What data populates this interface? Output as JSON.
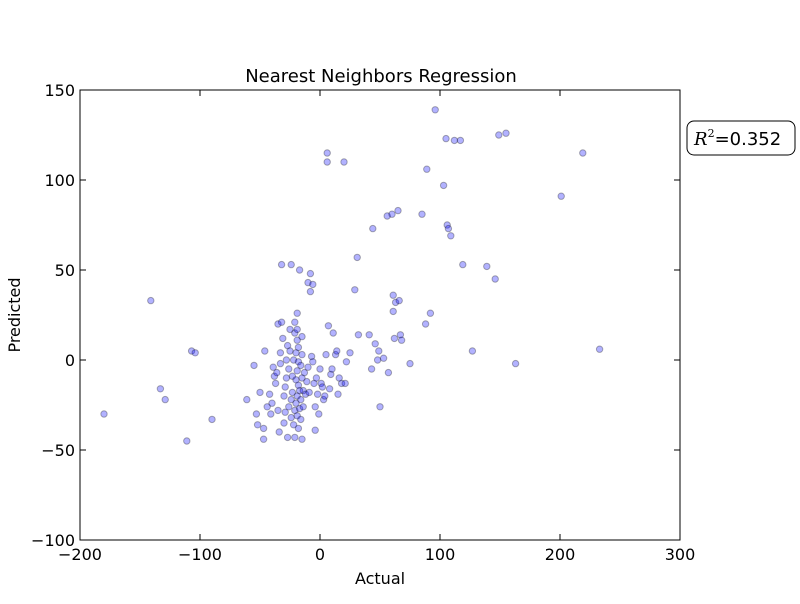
{
  "chart_data": {
    "type": "scatter",
    "title": "Nearest Neighbors Regression",
    "xlabel": "Actual",
    "ylabel": "Predicted",
    "xlim": [
      -200,
      300
    ],
    "ylim": [
      -100,
      150
    ],
    "xticks": [
      -200,
      -100,
      0,
      100,
      200,
      300
    ],
    "yticks": [
      -100,
      -50,
      0,
      50,
      100,
      150
    ],
    "xtick_labels": [
      "−200",
      "−100",
      "0",
      "100",
      "200",
      "300"
    ],
    "ytick_labels": [
      "−100",
      "−50",
      "0",
      "50",
      "100",
      "150"
    ],
    "grid": false,
    "marker_color": "#0000ff",
    "marker_alpha": 0.3,
    "annotation": {
      "symbol": "R",
      "exponent": "2",
      "text": "=0.352"
    },
    "points": [
      [
        -180,
        -30
      ],
      [
        -141,
        33
      ],
      [
        -133,
        -16
      ],
      [
        -129,
        -22
      ],
      [
        -111,
        -45
      ],
      [
        -107,
        5
      ],
      [
        -104,
        4
      ],
      [
        -90,
        -33
      ],
      [
        -61,
        -22
      ],
      [
        -55,
        -3
      ],
      [
        -53,
        -30
      ],
      [
        -52,
        -36
      ],
      [
        -50,
        -18
      ],
      [
        -47,
        -38
      ],
      [
        -47,
        -44
      ],
      [
        -46,
        5
      ],
      [
        -44,
        -26
      ],
      [
        -42,
        -19
      ],
      [
        -41,
        -30
      ],
      [
        -40,
        -24
      ],
      [
        -39,
        -4
      ],
      [
        -38,
        -9
      ],
      [
        -37,
        -13
      ],
      [
        -36,
        -7
      ],
      [
        -35,
        -28
      ],
      [
        -35,
        20
      ],
      [
        -34,
        -40
      ],
      [
        -33,
        -2
      ],
      [
        -33,
        4
      ],
      [
        -32,
        53
      ],
      [
        -32,
        21
      ],
      [
        -31,
        12
      ],
      [
        -30,
        -35
      ],
      [
        -30,
        -20
      ],
      [
        -29,
        -29
      ],
      [
        -29,
        -15
      ],
      [
        -28,
        -10
      ],
      [
        -28,
        0
      ],
      [
        -27,
        8
      ],
      [
        -27,
        -43
      ],
      [
        -26,
        -26
      ],
      [
        -26,
        -5
      ],
      [
        -25,
        5
      ],
      [
        -25,
        17
      ],
      [
        -24,
        -32
      ],
      [
        -24,
        -22
      ],
      [
        -24,
        53
      ],
      [
        -23,
        -18
      ],
      [
        -23,
        -9
      ],
      [
        -22,
        0
      ],
      [
        -22,
        -36
      ],
      [
        -21,
        21
      ],
      [
        -21,
        15
      ],
      [
        -21,
        -43
      ],
      [
        -21,
        -28
      ],
      [
        -20,
        -11
      ],
      [
        -20,
        4
      ],
      [
        -20,
        -24
      ],
      [
        -19,
        26
      ],
      [
        -19,
        17
      ],
      [
        -19,
        11
      ],
      [
        -19,
        -6
      ],
      [
        -19,
        -20
      ],
      [
        -19,
        -31
      ],
      [
        -18,
        -38
      ],
      [
        -18,
        -14
      ],
      [
        -18,
        -1
      ],
      [
        -18,
        7
      ],
      [
        -17,
        -27
      ],
      [
        -17,
        -17
      ],
      [
        -17,
        50
      ],
      [
        -16,
        -3
      ],
      [
        -16,
        -22
      ],
      [
        -16,
        -33
      ],
      [
        -15,
        -44
      ],
      [
        -15,
        -10
      ],
      [
        -15,
        3
      ],
      [
        -15,
        13
      ],
      [
        -14,
        -26
      ],
      [
        -14,
        -17
      ],
      [
        -13,
        -7
      ],
      [
        -12,
        -19
      ],
      [
        -11,
        -12
      ],
      [
        -10,
        -4
      ],
      [
        -10,
        43
      ],
      [
        -9,
        -18
      ],
      [
        -8,
        38
      ],
      [
        -8,
        48
      ],
      [
        -7,
        2
      ],
      [
        -6,
        42
      ],
      [
        -6,
        -1
      ],
      [
        -5,
        -13
      ],
      [
        -4,
        -39
      ],
      [
        -4,
        -26
      ],
      [
        -3,
        -10
      ],
      [
        -2,
        -19
      ],
      [
        -1,
        -30
      ],
      [
        0,
        -5
      ],
      [
        1,
        -13
      ],
      [
        2,
        -15
      ],
      [
        3,
        -22
      ],
      [
        4,
        -20
      ],
      [
        5,
        3
      ],
      [
        6,
        115
      ],
      [
        6,
        110
      ],
      [
        7,
        19
      ],
      [
        8,
        -16
      ],
      [
        9,
        -8
      ],
      [
        10,
        -5
      ],
      [
        11,
        15
      ],
      [
        13,
        3
      ],
      [
        14,
        5
      ],
      [
        15,
        -19
      ],
      [
        16,
        -10
      ],
      [
        18,
        -13
      ],
      [
        20,
        110
      ],
      [
        21,
        -13
      ],
      [
        22,
        -1
      ],
      [
        25,
        4
      ],
      [
        29,
        39
      ],
      [
        31,
        57
      ],
      [
        32,
        14
      ],
      [
        41,
        14
      ],
      [
        43,
        -5
      ],
      [
        44,
        73
      ],
      [
        46,
        9
      ],
      [
        48,
        0
      ],
      [
        49,
        5
      ],
      [
        50,
        -26
      ],
      [
        53,
        1
      ],
      [
        56,
        80
      ],
      [
        57,
        -7
      ],
      [
        60,
        81
      ],
      [
        61,
        36
      ],
      [
        61,
        27
      ],
      [
        62,
        12
      ],
      [
        63,
        32
      ],
      [
        65,
        83
      ],
      [
        66,
        33
      ],
      [
        67,
        14
      ],
      [
        68,
        11
      ],
      [
        75,
        -2
      ],
      [
        85,
        81
      ],
      [
        88,
        20
      ],
      [
        89,
        106
      ],
      [
        92,
        26
      ],
      [
        96,
        139
      ],
      [
        103,
        97
      ],
      [
        105,
        123
      ],
      [
        106,
        75
      ],
      [
        107,
        73
      ],
      [
        109,
        69
      ],
      [
        112,
        122
      ],
      [
        117,
        122
      ],
      [
        119,
        53
      ],
      [
        127,
        5
      ],
      [
        139,
        52
      ],
      [
        146,
        45
      ],
      [
        149,
        125
      ],
      [
        155,
        126
      ],
      [
        163,
        -2
      ],
      [
        201,
        91
      ],
      [
        219,
        115
      ],
      [
        233,
        6
      ]
    ]
  }
}
